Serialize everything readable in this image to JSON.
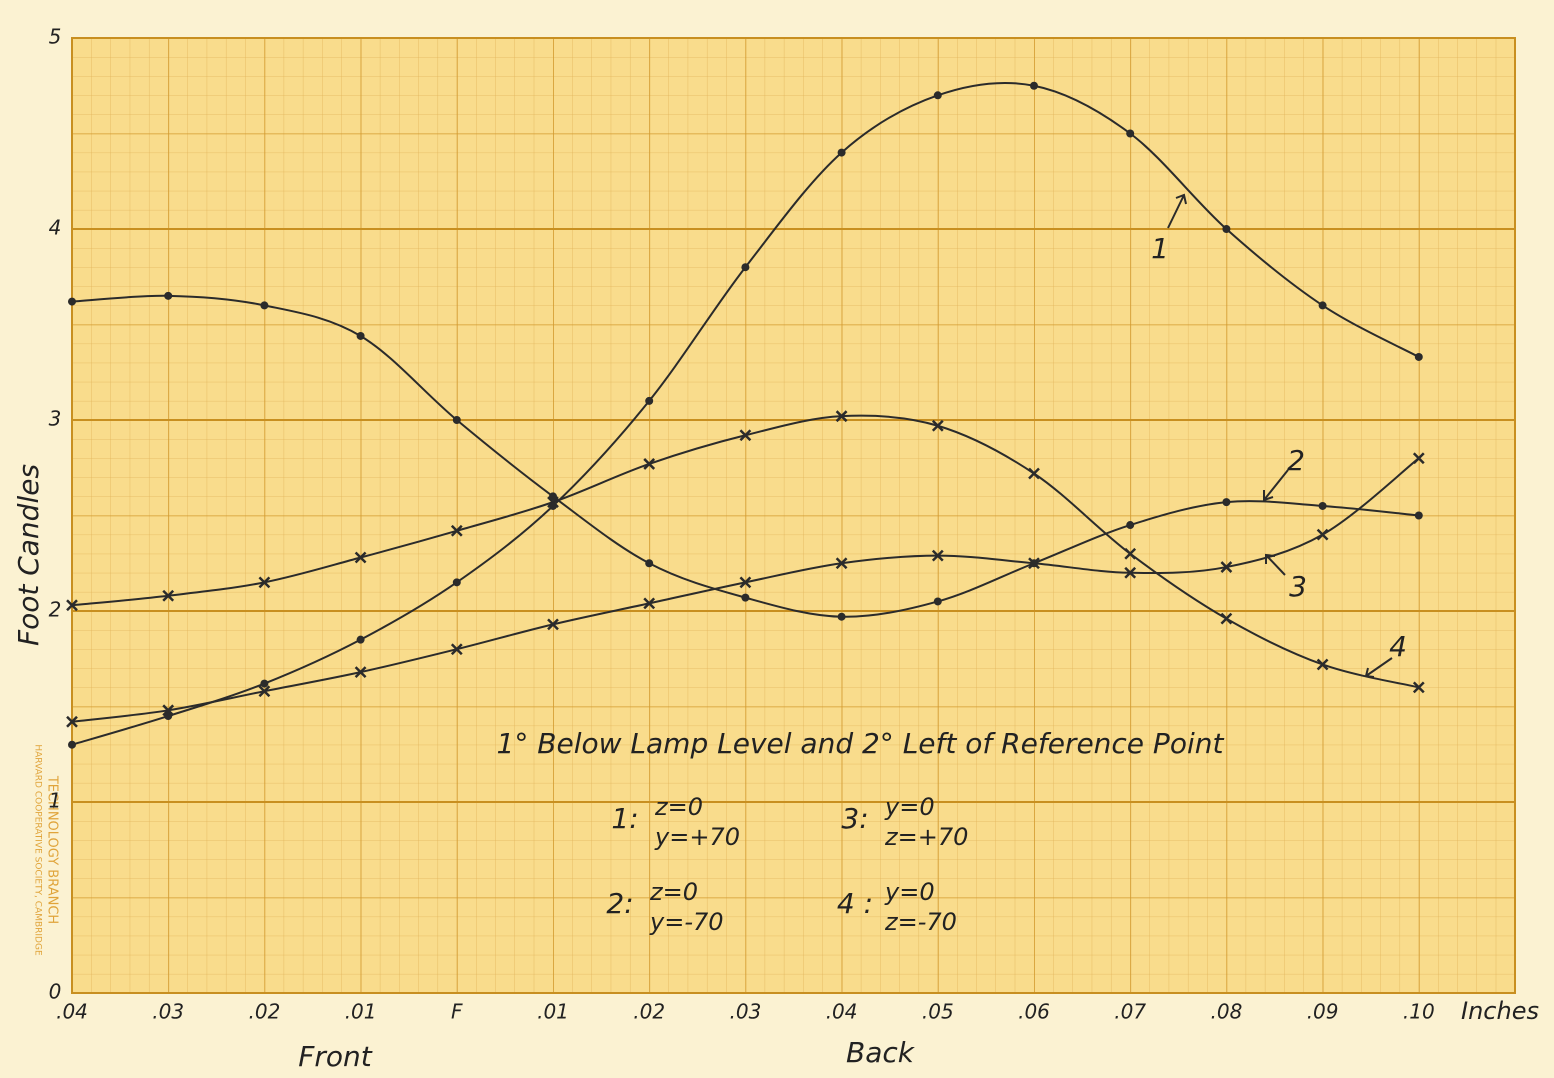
{
  "chart_data": {
    "type": "line",
    "title": "1° Below Lamp Level and 2° Left of Reference Point",
    "x_label": "Inches",
    "y_label": "Foot Candles",
    "x_group_labels": [
      "Front",
      "Back"
    ],
    "stamp": [
      "TECHNOLOGY BRANCH",
      "HARVARD COOPERATIVE SOCIETY, CAMBRIDGE"
    ],
    "categories": [
      ".04",
      ".03",
      ".02",
      ".01",
      "F",
      ".01",
      ".02",
      ".03",
      ".04",
      ".05",
      ".06",
      ".07",
      ".08",
      ".09",
      ".10"
    ],
    "ylim": [
      0,
      5
    ],
    "yticks": [
      0,
      1,
      2,
      3,
      4,
      5
    ],
    "grid": true,
    "series": [
      {
        "name": "1",
        "color": "#2b2b2b",
        "marker": "x",
        "values": [
          2.03,
          2.08,
          2.15,
          2.28,
          2.42,
          2.57,
          2.77,
          2.92,
          3.02,
          2.97,
          2.72,
          2.3,
          1.96,
          1.72,
          1.6
        ]
      },
      {
        "name": "2",
        "color": "#2b2b2b",
        "marker": "dot",
        "values": [
          1.3,
          1.45,
          1.62,
          1.85,
          2.15,
          2.55,
          3.1,
          3.8,
          4.4,
          4.7,
          4.75,
          4.5,
          4.0,
          3.6,
          3.33
        ]
      },
      {
        "name": "3",
        "color": "#2b2b2b",
        "marker": "x",
        "values": [
          1.42,
          1.48,
          1.58,
          1.68,
          1.8,
          1.93,
          2.04,
          2.15,
          2.25,
          2.29,
          2.25,
          2.2,
          2.23,
          2.4,
          2.8
        ]
      },
      {
        "name": "4",
        "color": "#2b2b2b",
        "marker": "dot",
        "values": [
          3.62,
          3.65,
          3.6,
          3.44,
          3.0,
          2.6,
          2.25,
          2.07,
          1.97,
          2.05,
          2.25,
          2.45,
          2.57,
          2.55,
          2.5
        ]
      }
    ],
    "key": [
      {
        "id": "1:",
        "lines": [
          "z=0",
          "y=+70"
        ]
      },
      {
        "id": "3:",
        "lines": [
          "y=0",
          "z=+70"
        ]
      },
      {
        "id": "2:",
        "lines": [
          "z=0",
          "y=-70"
        ]
      },
      {
        "id": "4 :",
        "lines": [
          "y=0",
          "z=-70"
        ]
      }
    ]
  }
}
